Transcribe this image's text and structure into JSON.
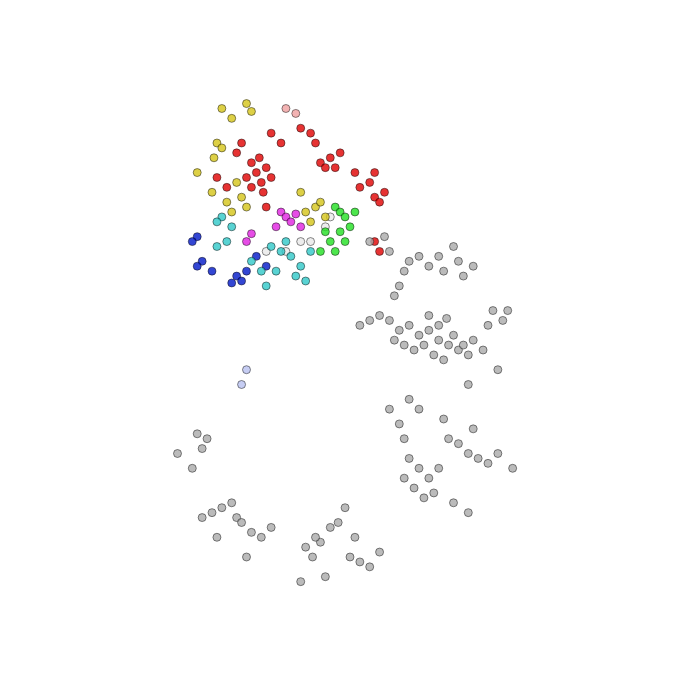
{
  "chart_data": {
    "type": "scatter",
    "marker": "circle",
    "grid": false,
    "tick_labels": false,
    "xlim": [
      0,
      700
    ],
    "ylim": [
      0,
      700
    ],
    "series": [
      {
        "color": "#aaaaaa",
        "points": [
          [
            400,
            370
          ],
          [
            410,
            375
          ],
          [
            420,
            365
          ],
          [
            430,
            370
          ],
          [
            440,
            360
          ],
          [
            450,
            355
          ],
          [
            460,
            350
          ],
          [
            435,
            345
          ],
          [
            445,
            340
          ],
          [
            425,
            355
          ],
          [
            415,
            350
          ],
          [
            455,
            365
          ],
          [
            465,
            355
          ],
          [
            470,
            345
          ],
          [
            390,
            380
          ],
          [
            380,
            385
          ],
          [
            370,
            380
          ],
          [
            360,
            375
          ],
          [
            395,
            360
          ],
          [
            405,
            355
          ],
          [
            440,
            375
          ],
          [
            430,
            385
          ],
          [
            448,
            382
          ],
          [
            475,
            360
          ],
          [
            485,
            350
          ],
          [
            400,
            415
          ],
          [
            405,
            430
          ],
          [
            410,
            440
          ],
          [
            420,
            445
          ],
          [
            430,
            435
          ],
          [
            440,
            445
          ],
          [
            445,
            430
          ],
          [
            455,
            455
          ],
          [
            460,
            440
          ],
          [
            465,
            425
          ],
          [
            395,
            405
          ],
          [
            390,
            450
          ],
          [
            385,
            465
          ],
          [
            370,
            460
          ],
          [
            475,
            435
          ],
          [
            495,
            390
          ],
          [
            505,
            380
          ],
          [
            490,
            375
          ],
          [
            510,
            390
          ],
          [
            500,
            330
          ],
          [
            470,
            315
          ],
          [
            410,
            240
          ],
          [
            420,
            230
          ],
          [
            430,
            220
          ],
          [
            415,
            210
          ],
          [
            425,
            200
          ],
          [
            435,
            205
          ],
          [
            440,
            230
          ],
          [
            405,
            220
          ],
          [
            450,
            260
          ],
          [
            460,
            255
          ],
          [
            470,
            245
          ],
          [
            480,
            240
          ],
          [
            490,
            235
          ],
          [
            475,
            270
          ],
          [
            445,
            280
          ],
          [
            455,
            195
          ],
          [
            470,
            185
          ],
          [
            500,
            245
          ],
          [
            515,
            230
          ],
          [
            400,
            275
          ],
          [
            405,
            260
          ],
          [
            305,
            150
          ],
          [
            312,
            140
          ],
          [
            320,
            155
          ],
          [
            330,
            170
          ],
          [
            338,
            175
          ],
          [
            315,
            160
          ],
          [
            345,
            190
          ],
          [
            350,
            140
          ],
          [
            360,
            135
          ],
          [
            370,
            130
          ],
          [
            380,
            145
          ],
          [
            355,
            160
          ],
          [
            325,
            120
          ],
          [
            300,
            115
          ],
          [
            210,
            185
          ],
          [
            220,
            190
          ],
          [
            235,
            180
          ],
          [
            240,
            175
          ],
          [
            230,
            195
          ],
          [
            250,
            165
          ],
          [
            260,
            160
          ],
          [
            245,
            140
          ],
          [
            270,
            170
          ],
          [
            200,
            180
          ],
          [
            215,
            160
          ],
          [
            195,
            265
          ],
          [
            205,
            260
          ],
          [
            200,
            250
          ],
          [
            175,
            245
          ],
          [
            190,
            230
          ],
          [
            410,
            300
          ],
          [
            420,
            290
          ],
          [
            390,
            290
          ]
        ]
      },
      {
        "color": "#b8c0f0",
        "points": [
          [
            245,
            330
          ],
          [
            240,
            315
          ]
        ]
      },
      {
        "color": "#e00000",
        "points": [
          [
            250,
            540
          ],
          [
            255,
            530
          ],
          [
            260,
            520
          ],
          [
            265,
            535
          ],
          [
            250,
            515
          ],
          [
            245,
            525
          ],
          [
            270,
            525
          ],
          [
            258,
            545
          ],
          [
            262,
            510
          ],
          [
            320,
            540
          ],
          [
            330,
            545
          ],
          [
            340,
            550
          ],
          [
            325,
            535
          ],
          [
            335,
            535
          ],
          [
            310,
            570
          ],
          [
            300,
            575
          ],
          [
            315,
            560
          ],
          [
            375,
            505
          ],
          [
            380,
            500
          ],
          [
            385,
            510
          ],
          [
            370,
            520
          ],
          [
            375,
            530
          ],
          [
            270,
            570
          ],
          [
            280,
            560
          ],
          [
            235,
            550
          ],
          [
            240,
            560
          ],
          [
            215,
            525
          ],
          [
            225,
            515
          ],
          [
            265,
            495
          ],
          [
            355,
            530
          ],
          [
            360,
            515
          ],
          [
            375,
            460
          ],
          [
            380,
            450
          ]
        ]
      },
      {
        "color": "#f0a0a0",
        "points": [
          [
            285,
            595
          ],
          [
            295,
            590
          ]
        ]
      },
      {
        "color": "#d4c418",
        "points": [
          [
            220,
            595
          ],
          [
            230,
            585
          ],
          [
            245,
            600
          ],
          [
            250,
            592
          ],
          [
            215,
            560
          ],
          [
            220,
            555
          ],
          [
            212,
            545
          ],
          [
            225,
            500
          ],
          [
            230,
            490
          ],
          [
            240,
            505
          ],
          [
            245,
            495
          ],
          [
            210,
            510
          ],
          [
            235,
            520
          ],
          [
            305,
            490
          ],
          [
            315,
            495
          ],
          [
            320,
            500
          ],
          [
            325,
            485
          ],
          [
            310,
            480
          ],
          [
            300,
            510
          ],
          [
            195,
            530
          ]
        ]
      },
      {
        "color": "#30c8c8",
        "points": [
          [
            220,
            485
          ],
          [
            215,
            480
          ],
          [
            230,
            475
          ],
          [
            270,
            455
          ],
          [
            280,
            450
          ],
          [
            290,
            445
          ],
          [
            300,
            435
          ],
          [
            295,
            425
          ],
          [
            260,
            430
          ],
          [
            250,
            440
          ],
          [
            310,
            450
          ],
          [
            285,
            460
          ],
          [
            275,
            430
          ],
          [
            215,
            455
          ],
          [
            225,
            460
          ],
          [
            265,
            415
          ],
          [
            305,
            420
          ]
        ]
      },
      {
        "color": "#0018c8",
        "points": [
          [
            200,
            440
          ],
          [
            195,
            435
          ],
          [
            235,
            425
          ],
          [
            240,
            420
          ],
          [
            230,
            418
          ],
          [
            245,
            430
          ],
          [
            195,
            465
          ],
          [
            190,
            460
          ],
          [
            265,
            435
          ],
          [
            255,
            445
          ],
          [
            210,
            430
          ]
        ]
      },
      {
        "color": "#e020e0",
        "points": [
          [
            280,
            490
          ],
          [
            285,
            485
          ],
          [
            290,
            480
          ],
          [
            295,
            488
          ],
          [
            275,
            475
          ],
          [
            300,
            475
          ],
          [
            245,
            460
          ],
          [
            250,
            468
          ]
        ]
      },
      {
        "color": "#20e020",
        "points": [
          [
            335,
            495
          ],
          [
            340,
            490
          ],
          [
            345,
            485
          ],
          [
            350,
            475
          ],
          [
            340,
            470
          ],
          [
            330,
            460
          ],
          [
            320,
            450
          ],
          [
            345,
            460
          ],
          [
            355,
            490
          ],
          [
            335,
            450
          ],
          [
            325,
            470
          ]
        ]
      },
      {
        "color": "#e8e8e8",
        "points": [
          [
            325,
            475
          ],
          [
            330,
            485
          ],
          [
            265,
            450
          ],
          [
            285,
            450
          ],
          [
            300,
            460
          ],
          [
            310,
            460
          ]
        ]
      }
    ]
  }
}
